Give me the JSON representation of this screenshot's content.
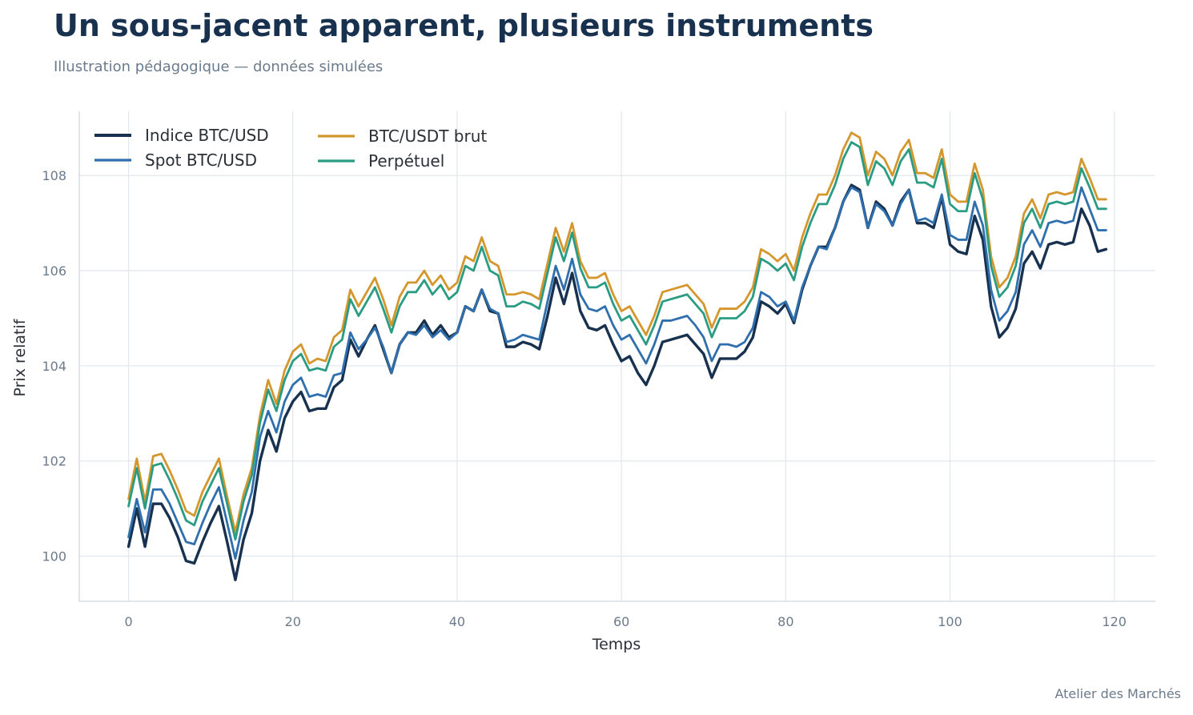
{
  "header": {
    "title": "Un sous-jacent apparent, plusieurs instruments",
    "subtitle": "Illustration pédagogique — données simulées"
  },
  "footer": {
    "credit": "Atelier des Marchés"
  },
  "chart_data": {
    "type": "line",
    "xlabel": "Temps",
    "ylabel": "Prix relatif",
    "xlim": [
      -6,
      125
    ],
    "ylim": [
      99.05,
      109.35
    ],
    "xticks": [
      0,
      20,
      40,
      60,
      80,
      100,
      120
    ],
    "yticks": [
      100,
      102,
      104,
      106,
      108
    ],
    "grid": true,
    "legend_position": "top-left",
    "x": [
      0,
      1,
      2,
      3,
      4,
      5,
      6,
      7,
      8,
      9,
      10,
      11,
      12,
      13,
      14,
      15,
      16,
      17,
      18,
      19,
      20,
      21,
      22,
      23,
      24,
      25,
      26,
      27,
      28,
      29,
      30,
      31,
      32,
      33,
      34,
      35,
      36,
      37,
      38,
      39,
      40,
      41,
      42,
      43,
      44,
      45,
      46,
      47,
      48,
      49,
      50,
      51,
      52,
      53,
      54,
      55,
      56,
      57,
      58,
      59,
      60,
      61,
      62,
      63,
      64,
      65,
      66,
      67,
      68,
      69,
      70,
      71,
      72,
      73,
      74,
      75,
      76,
      77,
      78,
      79,
      80,
      81,
      82,
      83,
      84,
      85,
      86,
      87,
      88,
      89,
      90,
      91,
      92,
      93,
      94,
      95,
      96,
      97,
      98,
      99,
      100,
      101,
      102,
      103,
      104,
      105,
      106,
      107,
      108,
      109,
      110,
      111,
      112,
      113,
      114,
      115,
      116,
      117,
      118,
      119
    ],
    "series": [
      {
        "name": "Indice BTC/USD",
        "color": "#17314f",
        "values": [
          100.2,
          101.0,
          100.2,
          101.1,
          101.1,
          100.8,
          100.4,
          99.9,
          99.85,
          100.3,
          100.7,
          101.05,
          100.3,
          99.5,
          100.35,
          100.9,
          102.0,
          102.65,
          102.2,
          102.9,
          103.25,
          103.45,
          103.05,
          103.1,
          103.1,
          103.55,
          103.7,
          104.55,
          104.2,
          104.55,
          104.85,
          104.35,
          103.85,
          104.45,
          104.7,
          104.7,
          104.95,
          104.65,
          104.85,
          104.6,
          104.7,
          105.25,
          105.15,
          105.6,
          105.15,
          105.1,
          104.4,
          104.4,
          104.5,
          104.45,
          104.35,
          105.05,
          105.85,
          105.3,
          105.95,
          105.15,
          104.8,
          104.75,
          104.85,
          104.45,
          104.1,
          104.2,
          103.85,
          103.6,
          104.0,
          104.5,
          104.55,
          104.6,
          104.65,
          104.45,
          104.25,
          103.75,
          104.15,
          104.15,
          104.15,
          104.3,
          104.6,
          105.35,
          105.25,
          105.1,
          105.3,
          104.9,
          105.6,
          106.1,
          106.5,
          106.5,
          106.9,
          107.45,
          107.8,
          107.7,
          106.9,
          107.45,
          107.3,
          106.95,
          107.45,
          107.7,
          107.0,
          107.0,
          106.9,
          107.55,
          106.55,
          106.4,
          106.35,
          107.15,
          106.65,
          105.25,
          104.6,
          104.8,
          105.2,
          106.15,
          106.4,
          106.05,
          106.55,
          106.6,
          106.55,
          106.6,
          107.3,
          106.95,
          106.4,
          106.45
        ]
      },
      {
        "name": "Spot BTC/USD",
        "color": "#2f6fad",
        "values": [
          100.4,
          101.2,
          100.5,
          101.4,
          101.4,
          101.1,
          100.7,
          100.3,
          100.25,
          100.7,
          101.1,
          101.45,
          100.7,
          99.95,
          100.75,
          101.35,
          102.5,
          103.05,
          102.6,
          103.25,
          103.6,
          103.75,
          103.35,
          103.4,
          103.35,
          103.8,
          103.85,
          104.7,
          104.35,
          104.55,
          104.8,
          104.4,
          103.85,
          104.45,
          104.7,
          104.65,
          104.85,
          104.6,
          104.75,
          104.55,
          104.7,
          105.25,
          105.15,
          105.6,
          105.2,
          105.1,
          104.5,
          104.55,
          104.65,
          104.6,
          104.55,
          105.35,
          106.1,
          105.6,
          106.25,
          105.5,
          105.2,
          105.15,
          105.25,
          104.85,
          104.55,
          104.65,
          104.35,
          104.05,
          104.45,
          104.95,
          104.95,
          105.0,
          105.05,
          104.85,
          104.6,
          104.1,
          104.45,
          104.45,
          104.4,
          104.5,
          104.8,
          105.55,
          105.45,
          105.25,
          105.35,
          104.95,
          105.65,
          106.1,
          106.5,
          106.45,
          106.9,
          107.45,
          107.75,
          107.65,
          106.9,
          107.4,
          107.25,
          106.95,
          107.4,
          107.7,
          107.05,
          107.1,
          107.0,
          107.6,
          106.75,
          106.65,
          106.65,
          107.45,
          106.95,
          105.6,
          104.95,
          105.15,
          105.55,
          106.55,
          106.85,
          106.5,
          107.0,
          107.05,
          107.0,
          107.05,
          107.75,
          107.3,
          106.85,
          106.85
        ]
      },
      {
        "name": "BTC/USDT brut",
        "color": "#d4972d",
        "values": [
          101.2,
          102.05,
          101.15,
          102.1,
          102.15,
          101.8,
          101.4,
          100.95,
          100.85,
          101.35,
          101.7,
          102.05,
          101.25,
          100.5,
          101.3,
          101.85,
          102.95,
          103.7,
          103.2,
          103.9,
          104.3,
          104.45,
          104.05,
          104.15,
          104.1,
          104.6,
          104.75,
          105.6,
          105.25,
          105.55,
          105.85,
          105.4,
          104.85,
          105.45,
          105.75,
          105.75,
          106.0,
          105.7,
          105.9,
          105.6,
          105.75,
          106.3,
          106.2,
          106.7,
          106.2,
          106.1,
          105.5,
          105.5,
          105.55,
          105.5,
          105.4,
          106.15,
          106.9,
          106.4,
          107.0,
          106.2,
          105.85,
          105.85,
          105.95,
          105.5,
          105.15,
          105.25,
          104.95,
          104.65,
          105.05,
          105.55,
          105.6,
          105.65,
          105.7,
          105.5,
          105.3,
          104.8,
          105.2,
          105.2,
          105.2,
          105.35,
          105.65,
          106.45,
          106.35,
          106.2,
          106.35,
          106.0,
          106.7,
          107.2,
          107.6,
          107.6,
          108.0,
          108.55,
          108.9,
          108.8,
          108.0,
          108.5,
          108.35,
          108.0,
          108.5,
          108.75,
          108.05,
          108.05,
          107.95,
          108.55,
          107.6,
          107.45,
          107.45,
          108.25,
          107.7,
          106.3,
          105.65,
          105.85,
          106.3,
          107.2,
          107.5,
          107.1,
          107.6,
          107.65,
          107.6,
          107.65,
          108.35,
          107.95,
          107.5,
          107.5
        ]
      },
      {
        "name": "Perpétuel",
        "color": "#2a9c84",
        "values": [
          101.05,
          101.85,
          101.0,
          101.9,
          101.95,
          101.6,
          101.2,
          100.75,
          100.65,
          101.15,
          101.5,
          101.85,
          101.1,
          100.35,
          101.15,
          101.7,
          102.8,
          103.5,
          103.05,
          103.7,
          104.1,
          104.25,
          103.9,
          103.95,
          103.9,
          104.4,
          104.55,
          105.4,
          105.05,
          105.35,
          105.65,
          105.2,
          104.7,
          105.25,
          105.55,
          105.55,
          105.8,
          105.5,
          105.7,
          105.4,
          105.55,
          106.1,
          106.0,
          106.5,
          106.0,
          105.9,
          105.25,
          105.25,
          105.35,
          105.3,
          105.2,
          105.95,
          106.7,
          106.2,
          106.8,
          106.05,
          105.65,
          105.65,
          105.75,
          105.3,
          104.95,
          105.05,
          104.75,
          104.45,
          104.85,
          105.35,
          105.4,
          105.45,
          105.5,
          105.3,
          105.1,
          104.6,
          105.0,
          105.0,
          105.0,
          105.15,
          105.45,
          106.25,
          106.15,
          106.0,
          106.15,
          105.8,
          106.5,
          107.0,
          107.4,
          107.4,
          107.8,
          108.35,
          108.7,
          108.6,
          107.8,
          108.3,
          108.15,
          107.8,
          108.3,
          108.55,
          107.85,
          107.85,
          107.75,
          108.35,
          107.4,
          107.25,
          107.25,
          108.05,
          107.5,
          106.1,
          105.45,
          105.65,
          106.1,
          107.0,
          107.3,
          106.9,
          107.4,
          107.45,
          107.4,
          107.45,
          108.15,
          107.75,
          107.3,
          107.3
        ]
      }
    ]
  }
}
